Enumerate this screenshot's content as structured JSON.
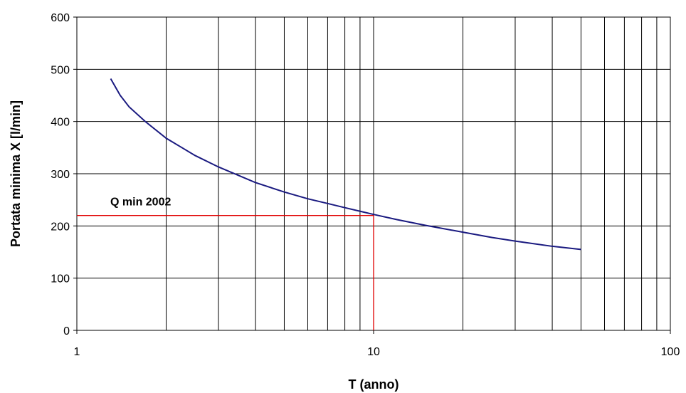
{
  "chart_data": {
    "type": "line",
    "xlabel": "T (anno)",
    "ylabel": "Portata minima X [l/min]",
    "x_scale": "log",
    "xlim": [
      1,
      100
    ],
    "ylim": [
      0,
      600
    ],
    "x_ticks": [
      1,
      10,
      100
    ],
    "y_ticks": [
      0,
      100,
      200,
      300,
      400,
      500,
      600
    ],
    "grid": true,
    "legend": "none",
    "colors": {
      "curve": "#1a1a80",
      "reference": "#e00000",
      "grid": "#000000"
    },
    "series": [
      {
        "x": [
          1.3,
          1.4,
          1.5,
          1.7,
          2,
          2.5,
          3,
          4,
          5,
          6,
          7,
          8,
          10,
          12,
          15,
          20,
          25,
          30,
          40,
          50
        ],
        "y": [
          482,
          450,
          428,
          400,
          368,
          335,
          313,
          283,
          265,
          252,
          243,
          235,
          222,
          212,
          201,
          188,
          178,
          171,
          161,
          155
        ]
      }
    ],
    "reference": {
      "label": "Q min 2002",
      "x": 10,
      "y": 220
    }
  }
}
